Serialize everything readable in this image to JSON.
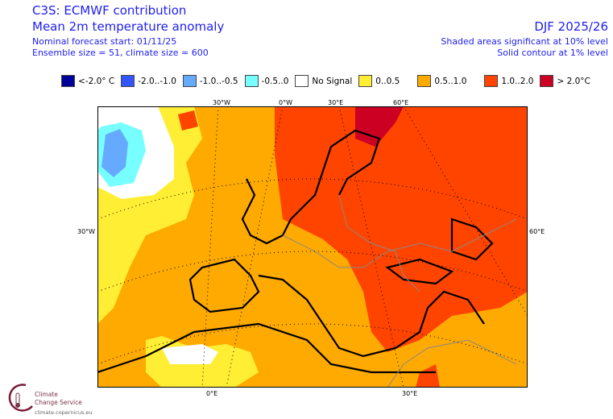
{
  "header": {
    "title": "C3S: ECMWF contribution",
    "subtitle": "Mean 2m temperature anomaly",
    "forecast_start": "Nominal forecast start: 01/11/25",
    "ensemble": "Ensemble size = 51, climate size = 600",
    "period": "DJF 2025/26",
    "significance": "Shaded areas significant at 10% level",
    "contour": "Solid contour at 1% level"
  },
  "legend": [
    {
      "label": "<-2.0° C",
      "color": "#000099"
    },
    {
      "label": "-2.0..-1.0",
      "color": "#3355ff"
    },
    {
      "label": "-1.0..-0.5",
      "color": "#66aaff"
    },
    {
      "label": "-0.5..0",
      "color": "#77ffff"
    },
    {
      "label": "No Signal",
      "color": "#ffffff"
    },
    {
      "label": "0..0.5",
      "color": "#ffee33"
    },
    {
      "label": "0.5..1.0",
      "color": "#ffaa00"
    },
    {
      "label": "1.0..2.0",
      "color": "#ff4400"
    },
    {
      "label": "> 2.0°C",
      "color": "#cc0022"
    }
  ],
  "axes": {
    "top": [
      "30°W",
      "0°W",
      "30°E",
      "60°E"
    ],
    "left": "30°W",
    "right": "60°E",
    "bottom": [
      "0°E",
      "30°E"
    ]
  },
  "logo": {
    "line1": "Climate",
    "line2": "Change Service",
    "url": "climate.copernicus.eu"
  }
}
